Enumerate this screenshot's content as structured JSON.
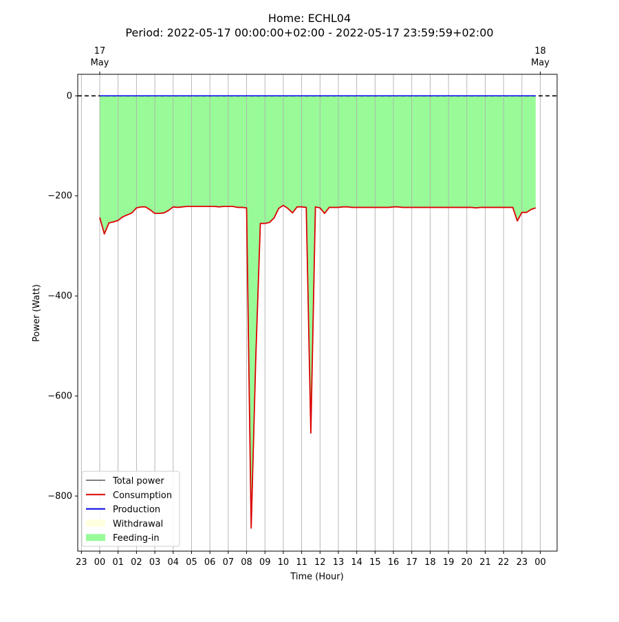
{
  "chart_data": {
    "type": "area",
    "title": "Home: ECHL04",
    "subtitle": "Period: 2022-05-17 00:00:00+02:00 - 2022-05-17 23:59:59+02:00",
    "xlabel": "Time (Hour)",
    "ylabel": "Power (Watt)",
    "xlim": [
      "2022-05-16 22:48",
      "2022-05-18 00:55"
    ],
    "ylim": [
      -910,
      43
    ],
    "y_ticks": [
      0,
      -200,
      -400,
      -600,
      -800
    ],
    "y_tick_labels": [
      "0",
      "−200",
      "−400",
      "−600",
      "−800"
    ],
    "x_ticks": [
      "2022-05-16 23:00",
      "2022-05-17 00:00",
      "2022-05-17 01:00",
      "2022-05-17 02:00",
      "2022-05-17 03:00",
      "2022-05-17 04:00",
      "2022-05-17 05:00",
      "2022-05-17 06:00",
      "2022-05-17 07:00",
      "2022-05-17 08:00",
      "2022-05-17 09:00",
      "2022-05-17 10:00",
      "2022-05-17 11:00",
      "2022-05-17 12:00",
      "2022-05-17 13:00",
      "2022-05-17 14:00",
      "2022-05-17 15:00",
      "2022-05-17 16:00",
      "2022-05-17 17:00",
      "2022-05-17 18:00",
      "2022-05-17 19:00",
      "2022-05-17 20:00",
      "2022-05-17 21:00",
      "2022-05-17 22:00",
      "2022-05-17 23:00",
      "2022-05-18 00:00"
    ],
    "x_tick_labels": [
      "23",
      "00",
      "01",
      "02",
      "03",
      "04",
      "05",
      "06",
      "07",
      "08",
      "09",
      "10",
      "11",
      "12",
      "13",
      "14",
      "15",
      "16",
      "17",
      "18",
      "19",
      "20",
      "21",
      "22",
      "23",
      "00"
    ],
    "top_ticks": [
      {
        "x": "2022-05-17 00:00",
        "day": "17",
        "month": "May"
      },
      {
        "x": "2022-05-18 00:00",
        "day": "18",
        "month": "May"
      }
    ],
    "grid": "vertical",
    "zero_line": {
      "y": 0,
      "style": "dashed",
      "color": "#000000"
    },
    "legend_position": "lower-left",
    "legend": [
      {
        "label": "Total power",
        "color": "#808080",
        "kind": "line"
      },
      {
        "label": "Consumption",
        "color": "#dd0000",
        "kind": "line"
      },
      {
        "label": "Production",
        "color": "#0000ee",
        "kind": "line"
      },
      {
        "label": "Withdrawal",
        "color": "#ffffe0",
        "kind": "patch"
      },
      {
        "label": "Feeding-in",
        "color": "#98fb98",
        "kind": "patch"
      }
    ],
    "series": [
      {
        "name": "Consumption",
        "color": "#dd0000",
        "x": [
          "00:00",
          "00:15",
          "00:30",
          "00:45",
          "01:00",
          "01:15",
          "01:30",
          "01:45",
          "02:00",
          "02:15",
          "02:30",
          "02:45",
          "03:00",
          "03:15",
          "03:30",
          "03:45",
          "04:00",
          "04:15",
          "04:30",
          "04:45",
          "05:00",
          "05:15",
          "05:30",
          "05:45",
          "06:00",
          "06:15",
          "06:30",
          "06:45",
          "07:00",
          "07:15",
          "07:30",
          "07:45",
          "08:00",
          "08:15",
          "08:30",
          "08:45",
          "09:00",
          "09:15",
          "09:30",
          "09:45",
          "10:00",
          "10:15",
          "10:30",
          "10:45",
          "11:00",
          "11:15",
          "11:30",
          "11:45",
          "12:00",
          "12:15",
          "12:30",
          "12:45",
          "13:00",
          "13:15",
          "13:30",
          "13:45",
          "14:00",
          "14:15",
          "14:30",
          "14:45",
          "15:00",
          "15:15",
          "15:30",
          "15:45",
          "16:00",
          "16:15",
          "16:30",
          "16:45",
          "17:00",
          "17:15",
          "17:30",
          "17:45",
          "18:00",
          "18:15",
          "18:30",
          "18:45",
          "19:00",
          "19:15",
          "19:30",
          "19:45",
          "20:00",
          "20:15",
          "20:30",
          "20:45",
          "21:00",
          "21:15",
          "21:30",
          "21:45",
          "22:00",
          "22:15",
          "22:30",
          "22:45",
          "23:00",
          "23:15",
          "23:30",
          "23:45"
        ],
        "values": [
          -243,
          -276,
          -254,
          -252,
          -249,
          -242,
          -238,
          -234,
          -224,
          -222,
          -222,
          -228,
          -235,
          -235,
          -234,
          -229,
          -222,
          -223,
          -222,
          -221,
          -221,
          -221,
          -221,
          -221,
          -221,
          -221,
          -222,
          -221,
          -221,
          -221,
          -223,
          -223,
          -224,
          -864,
          -525,
          -255,
          -255,
          -253,
          -244,
          -225,
          -219,
          -225,
          -234,
          -222,
          -222,
          -223,
          -674,
          -222,
          -224,
          -235,
          -223,
          -223,
          -223,
          -222,
          -222,
          -223,
          -223,
          -223,
          -223,
          -223,
          -223,
          -223,
          -223,
          -223,
          -222,
          -222,
          -223,
          -223,
          -223,
          -223,
          -223,
          -223,
          -223,
          -223,
          -223,
          -223,
          -223,
          -223,
          -223,
          -223,
          -223,
          -223,
          -224,
          -223,
          -223,
          -223,
          -223,
          -223,
          -223,
          -223,
          -223,
          -250,
          -233,
          -233,
          -227,
          -224
        ]
      },
      {
        "name": "Production",
        "color": "#0000ee",
        "x": [
          "00:00",
          "23:45"
        ],
        "values": [
          0,
          0
        ]
      }
    ],
    "fills": [
      {
        "name": "Feeding-in",
        "between": [
          "Consumption",
          0
        ],
        "color": "#98fb98"
      }
    ]
  }
}
